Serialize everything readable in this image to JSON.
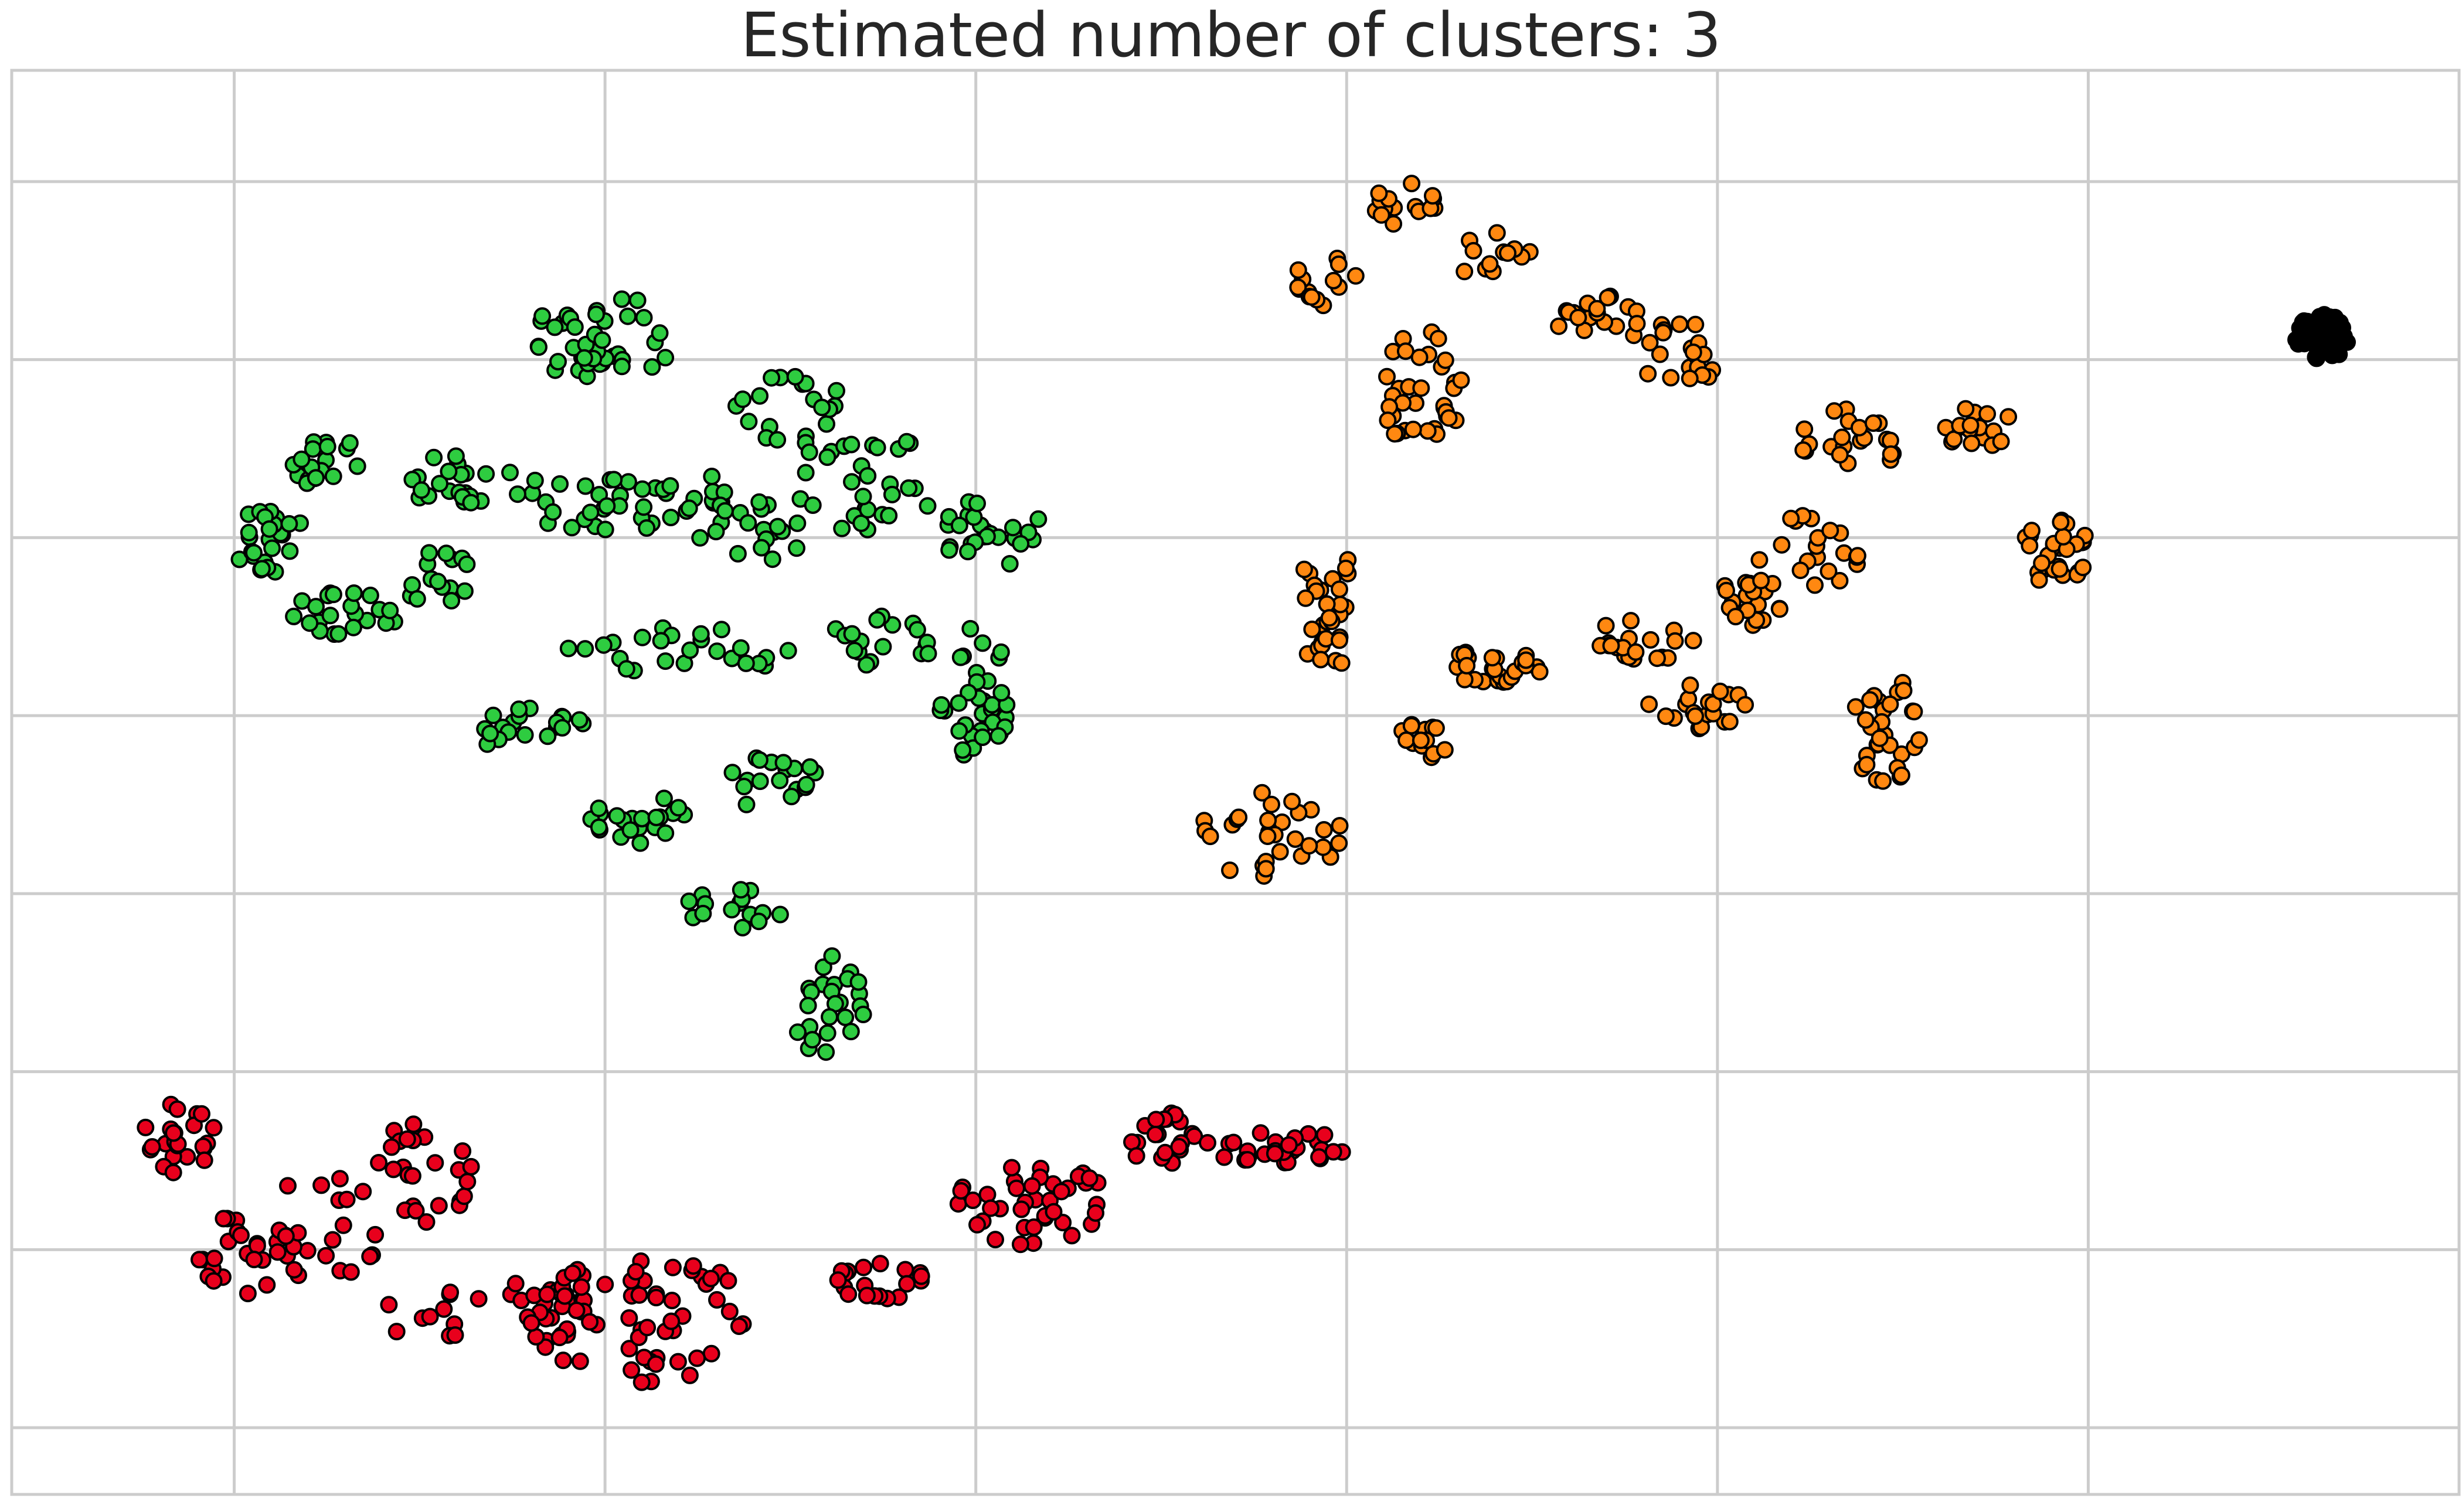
{
  "chart_data": {
    "type": "scatter",
    "title": "Estimated number of clusters: 3",
    "xlabel": "",
    "ylabel": "",
    "xlim": [
      -0.1,
      6.5
    ],
    "ylim": [
      0,
      8
    ],
    "grid": true,
    "x_gridlines": [
      0.5,
      1.5,
      2.5,
      3.5,
      4.5,
      5.5
    ],
    "y_gridlines": [
      0.375,
      1.375,
      2.375,
      3.375,
      4.375,
      5.375,
      6.375,
      7.375
    ],
    "colors": {
      "green": "#2ecc40",
      "orange": "#ff8811",
      "red": "#e8001c",
      "black": "#000000",
      "edge": "#000000",
      "grid": "#cccccc"
    },
    "series": [
      {
        "color_key": "green",
        "regions": [
          {
            "cx": 1.5,
            "cy": 6.5,
            "rx": 0.2,
            "ry": 0.25,
            "n": 40
          },
          {
            "cx": 2.0,
            "cy": 6.1,
            "rx": 0.15,
            "ry": 0.2,
            "n": 20
          },
          {
            "cx": 0.75,
            "cy": 5.8,
            "rx": 0.1,
            "ry": 0.15,
            "n": 18
          },
          {
            "cx": 0.6,
            "cy": 5.35,
            "rx": 0.1,
            "ry": 0.2,
            "n": 25
          },
          {
            "cx": 0.8,
            "cy": 4.95,
            "rx": 0.15,
            "ry": 0.12,
            "n": 22
          },
          {
            "cx": 1.1,
            "cy": 5.7,
            "rx": 0.15,
            "ry": 0.15,
            "n": 22
          },
          {
            "cx": 1.55,
            "cy": 5.6,
            "rx": 0.3,
            "ry": 0.2,
            "n": 40
          },
          {
            "cx": 1.9,
            "cy": 5.4,
            "rx": 0.15,
            "ry": 0.2,
            "n": 20
          },
          {
            "cx": 2.2,
            "cy": 5.7,
            "rx": 0.2,
            "ry": 0.3,
            "n": 30
          },
          {
            "cx": 2.55,
            "cy": 5.4,
            "rx": 0.15,
            "ry": 0.2,
            "n": 25
          },
          {
            "cx": 1.05,
            "cy": 5.15,
            "rx": 0.12,
            "ry": 0.15,
            "n": 15
          },
          {
            "cx": 1.7,
            "cy": 4.75,
            "rx": 0.3,
            "ry": 0.15,
            "n": 25
          },
          {
            "cx": 2.25,
            "cy": 4.8,
            "rx": 0.15,
            "ry": 0.15,
            "n": 18
          },
          {
            "cx": 2.5,
            "cy": 4.5,
            "rx": 0.1,
            "ry": 0.4,
            "n": 35
          },
          {
            "cx": 1.3,
            "cy": 4.3,
            "rx": 0.15,
            "ry": 0.15,
            "n": 20
          },
          {
            "cx": 1.6,
            "cy": 3.8,
            "rx": 0.15,
            "ry": 0.15,
            "n": 22
          },
          {
            "cx": 1.95,
            "cy": 4.0,
            "rx": 0.15,
            "ry": 0.15,
            "n": 18
          },
          {
            "cx": 1.85,
            "cy": 3.3,
            "rx": 0.15,
            "ry": 0.12,
            "n": 15
          },
          {
            "cx": 2.1,
            "cy": 2.75,
            "rx": 0.1,
            "ry": 0.3,
            "n": 25
          }
        ]
      },
      {
        "color_key": "orange",
        "regions": [
          {
            "cx": 3.65,
            "cy": 7.25,
            "rx": 0.1,
            "ry": 0.12,
            "n": 15
          },
          {
            "cx": 3.45,
            "cy": 6.8,
            "rx": 0.1,
            "ry": 0.15,
            "n": 14
          },
          {
            "cx": 3.7,
            "cy": 6.2,
            "rx": 0.12,
            "ry": 0.35,
            "n": 35
          },
          {
            "cx": 3.9,
            "cy": 6.95,
            "rx": 0.1,
            "ry": 0.15,
            "n": 12
          },
          {
            "cx": 4.25,
            "cy": 6.6,
            "rx": 0.2,
            "ry": 0.15,
            "n": 25
          },
          {
            "cx": 4.4,
            "cy": 6.35,
            "rx": 0.1,
            "ry": 0.15,
            "n": 15
          },
          {
            "cx": 4.85,
            "cy": 5.9,
            "rx": 0.15,
            "ry": 0.2,
            "n": 22
          },
          {
            "cx": 5.2,
            "cy": 6.0,
            "rx": 0.1,
            "ry": 0.12,
            "n": 18
          },
          {
            "cx": 5.4,
            "cy": 5.3,
            "rx": 0.1,
            "ry": 0.25,
            "n": 30
          },
          {
            "cx": 4.75,
            "cy": 5.3,
            "rx": 0.15,
            "ry": 0.2,
            "n": 20
          },
          {
            "cx": 3.45,
            "cy": 5.0,
            "rx": 0.08,
            "ry": 0.4,
            "n": 30
          },
          {
            "cx": 3.9,
            "cy": 4.65,
            "rx": 0.15,
            "ry": 0.1,
            "n": 25
          },
          {
            "cx": 4.3,
            "cy": 4.8,
            "rx": 0.15,
            "ry": 0.12,
            "n": 20
          },
          {
            "cx": 4.6,
            "cy": 5.0,
            "rx": 0.12,
            "ry": 0.15,
            "n": 20
          },
          {
            "cx": 3.7,
            "cy": 4.2,
            "rx": 0.07,
            "ry": 0.15,
            "n": 15
          },
          {
            "cx": 4.45,
            "cy": 4.4,
            "rx": 0.15,
            "ry": 0.15,
            "n": 20
          },
          {
            "cx": 4.95,
            "cy": 4.3,
            "rx": 0.1,
            "ry": 0.3,
            "n": 30
          },
          {
            "cx": 3.3,
            "cy": 3.7,
            "rx": 0.2,
            "ry": 0.25,
            "n": 30
          }
        ]
      },
      {
        "color_key": "red",
        "regions": [
          {
            "cx": 0.35,
            "cy": 2.0,
            "rx": 0.1,
            "ry": 0.2,
            "n": 25
          },
          {
            "cx": 0.5,
            "cy": 1.3,
            "rx": 0.1,
            "ry": 0.3,
            "n": 20
          },
          {
            "cx": 0.75,
            "cy": 1.5,
            "rx": 0.15,
            "ry": 0.35,
            "n": 25
          },
          {
            "cx": 1.0,
            "cy": 1.8,
            "rx": 0.15,
            "ry": 0.3,
            "n": 25
          },
          {
            "cx": 1.2,
            "cy": 1.0,
            "rx": 0.3,
            "ry": 0.2,
            "n": 35
          },
          {
            "cx": 1.6,
            "cy": 1.0,
            "rx": 0.3,
            "ry": 0.4,
            "n": 60
          },
          {
            "cx": 2.25,
            "cy": 1.2,
            "rx": 0.15,
            "ry": 0.1,
            "n": 20
          },
          {
            "cx": 2.65,
            "cy": 1.65,
            "rx": 0.2,
            "ry": 0.25,
            "n": 40
          },
          {
            "cx": 3.0,
            "cy": 2.0,
            "rx": 0.1,
            "ry": 0.15,
            "n": 20
          },
          {
            "cx": 3.3,
            "cy": 1.95,
            "rx": 0.2,
            "ry": 0.1,
            "n": 30
          }
        ]
      },
      {
        "color_key": "black",
        "regions": [
          {
            "cx": 6.13,
            "cy": 6.5,
            "rx": 0.07,
            "ry": 0.13,
            "n": 45
          }
        ]
      }
    ]
  }
}
